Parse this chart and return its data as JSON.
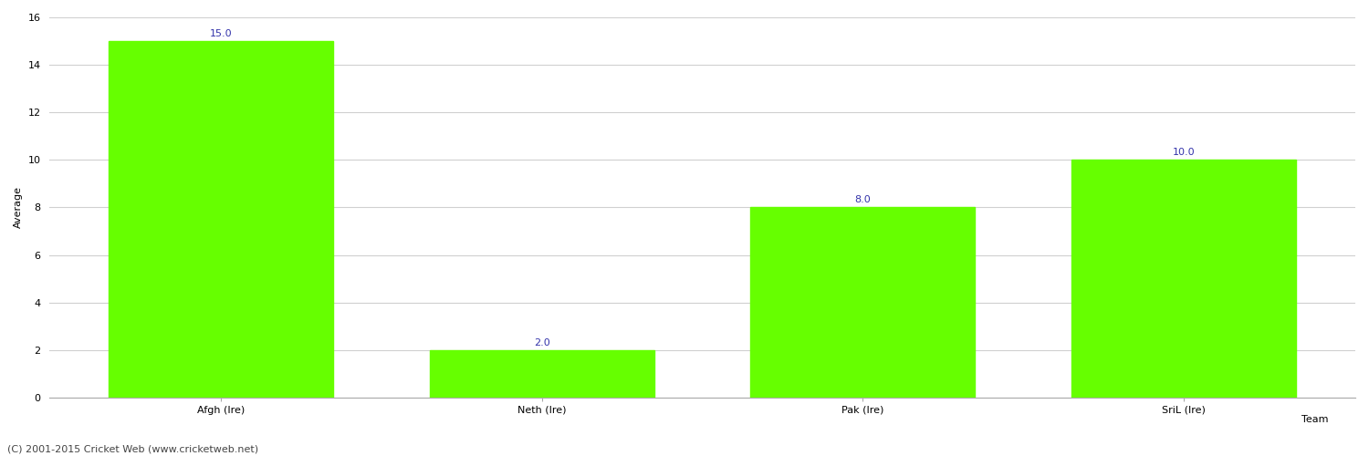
{
  "categories": [
    "Afgh (Ire)",
    "Neth (Ire)",
    "Pak (Ire)",
    "SriL (Ire)"
  ],
  "values": [
    15.0,
    2.0,
    8.0,
    10.0
  ],
  "bar_color": "#66ff00",
  "bar_edge_color": "#66ff00",
  "xlabel": "Team",
  "ylabel": "Average",
  "ylim": [
    0,
    16
  ],
  "yticks": [
    0,
    2,
    4,
    6,
    8,
    10,
    12,
    14,
    16
  ],
  "label_color": "#3333aa",
  "label_fontsize": 8,
  "tick_fontsize": 8,
  "xlabel_fontsize": 8,
  "ylabel_fontsize": 8,
  "background_color": "#ffffff",
  "grid_color": "#d0d0d0",
  "footer_text": "(C) 2001-2015 Cricket Web (www.cricketweb.net)",
  "footer_fontsize": 8,
  "footer_color": "#444444",
  "bar_width": 0.7
}
